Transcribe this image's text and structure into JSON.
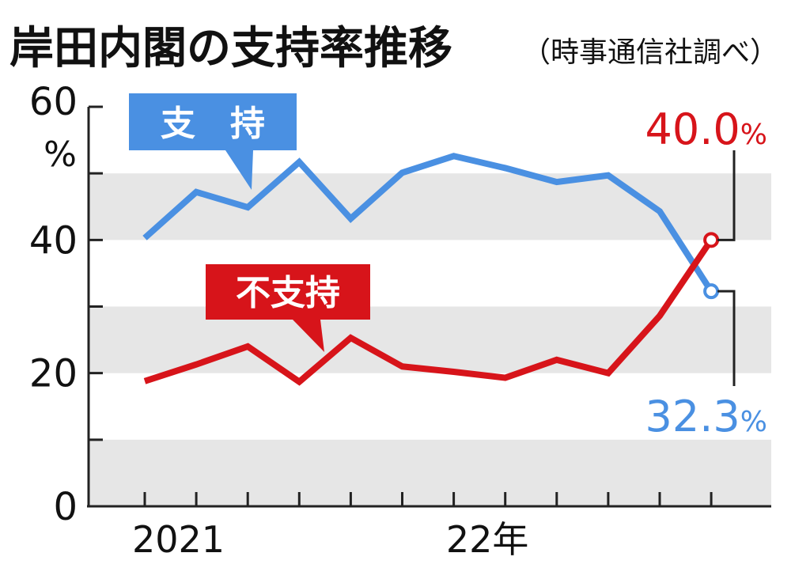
{
  "title": "岸田内閣の支持率推移",
  "source": "（時事通信社調べ）",
  "chart_data": {
    "type": "line",
    "y_unit": "%",
    "ylim": [
      0,
      60
    ],
    "y_ticks": [
      "0",
      "20",
      "40",
      "60"
    ],
    "x_labels": [
      {
        "text": "2021",
        "at": 1
      },
      {
        "text": "22年",
        "at": 7
      }
    ],
    "grid": "alternating horizontal bands",
    "series": [
      {
        "name": "支　持",
        "color": "#4a90e2",
        "values": [
          40.3,
          47.2,
          44.9,
          51.7,
          43.2,
          50.1,
          52.6,
          50.8,
          48.7,
          49.7,
          44.3,
          32.3
        ],
        "end_label": "32.3",
        "end_unit": "%"
      },
      {
        "name": "不支持",
        "color": "#d7141a",
        "values": [
          18.8,
          21.3,
          24.0,
          18.7,
          25.3,
          21.0,
          20.2,
          19.3,
          22.0,
          20.0,
          28.6,
          40.0
        ],
        "end_label": "40.0",
        "end_unit": "%"
      }
    ]
  }
}
